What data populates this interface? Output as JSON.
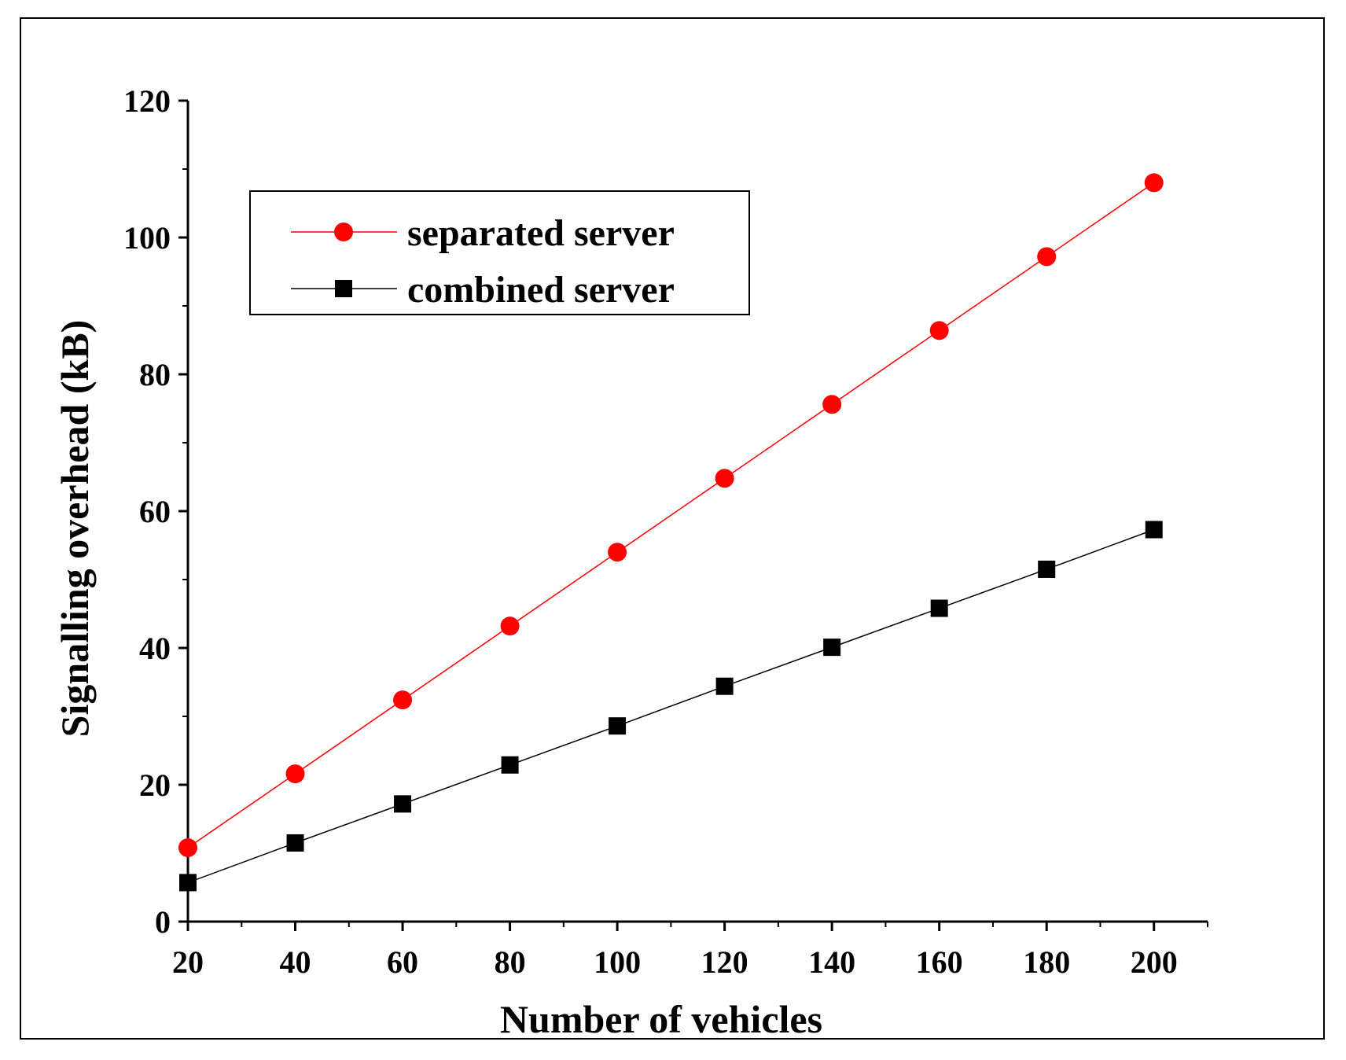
{
  "chart_data": {
    "type": "line",
    "title": "",
    "xlabel": "Number of vehicles",
    "ylabel": "Signalling overhead (kB)",
    "x": [
      20,
      40,
      60,
      80,
      100,
      120,
      140,
      160,
      180,
      200
    ],
    "xlim": [
      20,
      210
    ],
    "ylim": [
      0,
      120
    ],
    "x_ticks": [
      "20",
      "40",
      "60",
      "80",
      "100",
      "120",
      "140",
      "160",
      "180",
      "200"
    ],
    "y_ticks": [
      "0",
      "20",
      "40",
      "60",
      "80",
      "100",
      "120"
    ],
    "grid": false,
    "legend_position": "top-left",
    "series": [
      {
        "name": "separated server",
        "marker": "circle",
        "color": "#ff0000",
        "values": [
          10.8,
          21.6,
          32.4,
          43.2,
          54.0,
          64.8,
          75.6,
          86.4,
          97.2,
          108.0
        ]
      },
      {
        "name": "combined server",
        "marker": "square",
        "color": "#000000",
        "values": [
          5.7,
          11.5,
          17.2,
          22.9,
          28.6,
          34.4,
          40.1,
          45.8,
          51.5,
          57.3
        ]
      }
    ]
  }
}
